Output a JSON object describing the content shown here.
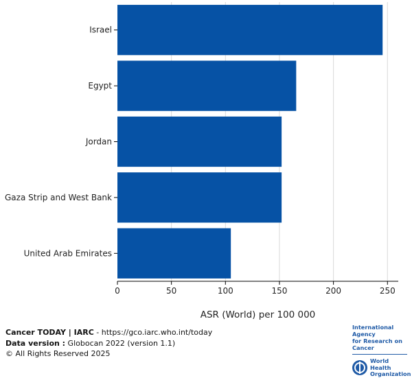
{
  "chart_data": {
    "type": "bar",
    "orientation": "horizontal",
    "categories": [
      "Israel",
      "Egypt",
      "Jordan",
      "Gaza Strip and West Bank",
      "United Arab Emirates"
    ],
    "values": [
      245.5,
      165.5,
      152.0,
      152.0,
      105.0
    ],
    "xlabel": "ASR (World) per 100 000",
    "xlim": [
      0,
      260
    ],
    "xticks": [
      0,
      50,
      100,
      150,
      200,
      250
    ],
    "grid": "vertical",
    "bar_color": "#0652a5"
  },
  "footer": {
    "brand": "Cancer TODAY | IARC",
    "url": " - https://gco.iarc.who.int/today",
    "data_version_label": "Data version :",
    "data_version_value": " Globocan 2022 (version 1.1)",
    "copyright": "© All Rights Reserved 2025"
  },
  "logos": {
    "iarc_line1": "International Agency",
    "iarc_line2": "for Research on Cancer",
    "who_line1": "World Health",
    "who_line2": "Organization"
  }
}
